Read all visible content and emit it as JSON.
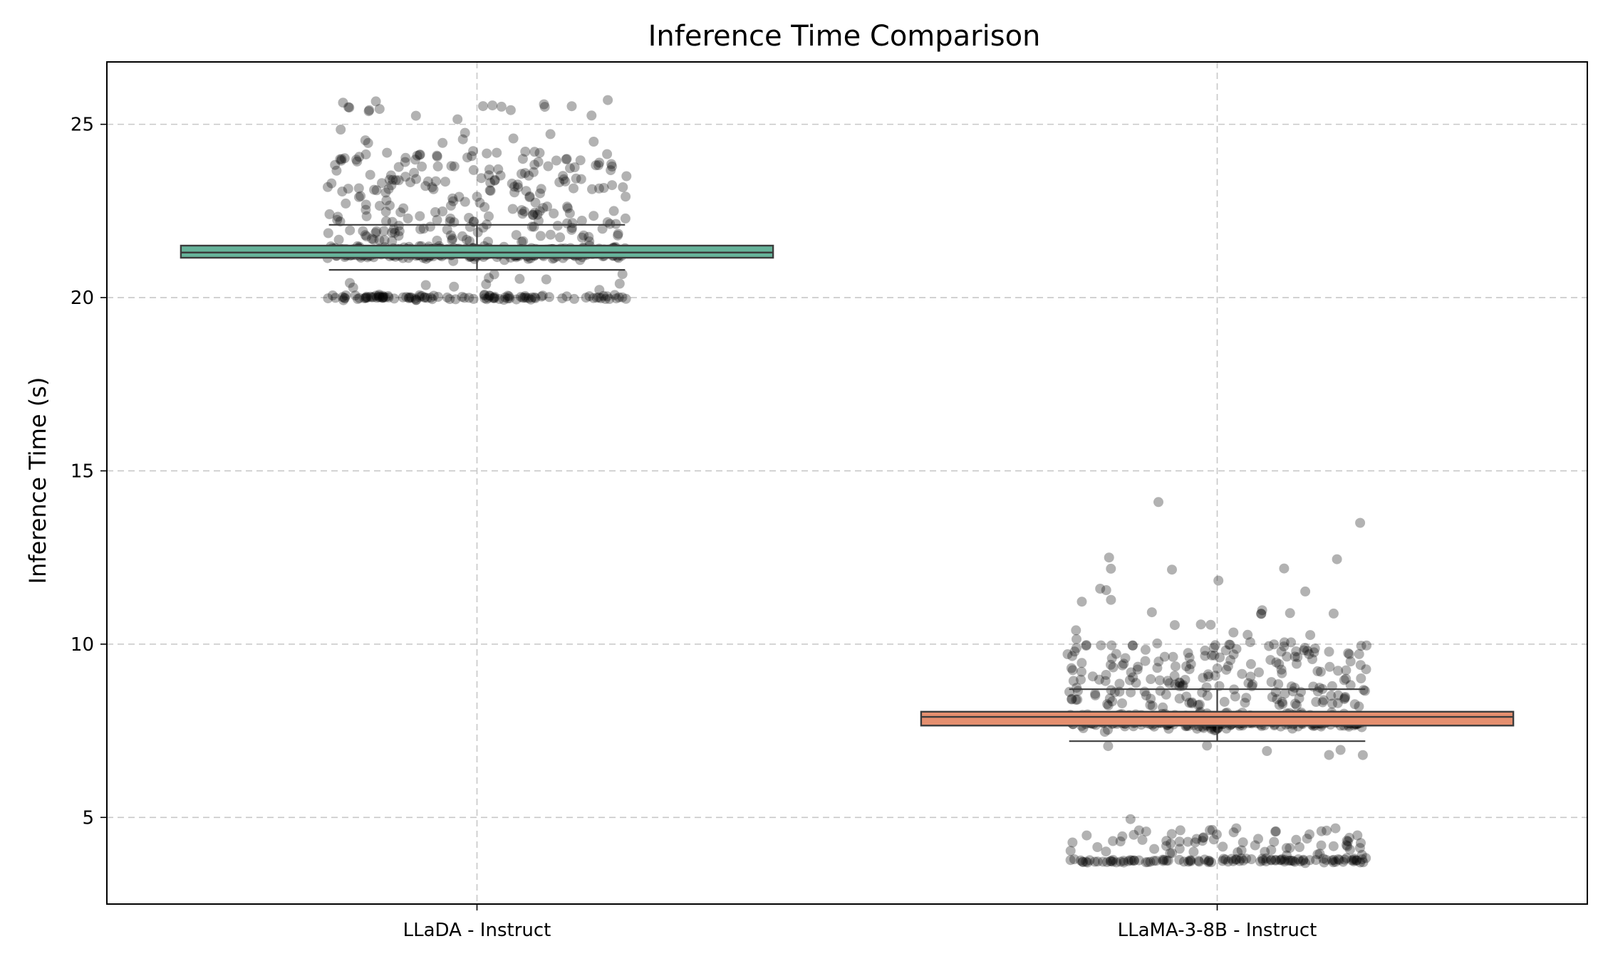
{
  "chart_data": {
    "type": "box",
    "title": "Inference Time Comparison",
    "xlabel": "",
    "ylabel": "Inference Time (s)",
    "ylim": [
      2.5,
      26.8
    ],
    "yticks": [
      5,
      10,
      15,
      20,
      25
    ],
    "grid": true,
    "categories": [
      "LLaDA - Instruct",
      "LLaMA-3-8B - Instruct"
    ],
    "series": [
      {
        "category": "LLaDA - Instruct",
        "color": "#66b39a",
        "box": {
          "q1": 21.15,
          "median": 21.3,
          "q3": 21.5,
          "whisker_low": 20.8,
          "whisker_high": 22.1
        },
        "points_summary": {
          "dense_bands": [
            20.0,
            21.3
          ],
          "scatter_range": [
            19.7,
            25.7
          ]
        }
      },
      {
        "category": "LLaMA-3-8B - Instruct",
        "color": "#e58f6f",
        "box": {
          "q1": 7.65,
          "median": 7.9,
          "q3": 8.05,
          "whisker_low": 7.2,
          "whisker_high": 8.7
        },
        "points_summary": {
          "dense_bands": [
            3.7,
            7.8
          ],
          "scatter_range": [
            3.6,
            14.1
          ]
        }
      }
    ]
  }
}
